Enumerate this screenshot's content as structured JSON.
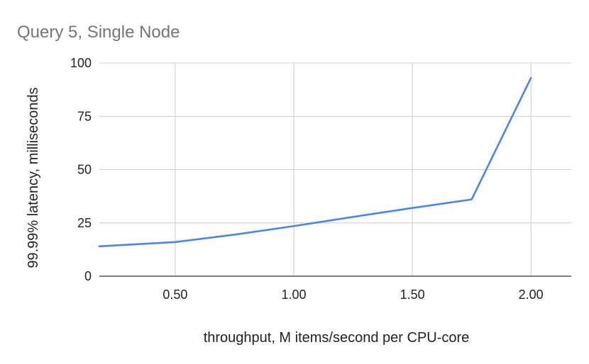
{
  "chart_data": {
    "type": "line",
    "title": "Query 5, Single Node",
    "xlabel": "throughput, M items/second per CPU-core",
    "ylabel": "99.99% latency, milliseconds",
    "xlim": [
      0.18,
      2.17
    ],
    "ylim": [
      0,
      100
    ],
    "x_ticks": [
      0.5,
      1.0,
      1.5,
      2.0
    ],
    "x_tick_labels": [
      "0.50",
      "1.00",
      "1.50",
      "2.00"
    ],
    "y_ticks": [
      0,
      25,
      50,
      75,
      100
    ],
    "y_tick_labels": [
      "0",
      "25",
      "50",
      "75",
      "100"
    ],
    "grid": true,
    "legend": "none",
    "series": [
      {
        "color": "#4a86e8",
        "x": [
          0.18,
          0.5,
          0.75,
          1.0,
          1.25,
          1.5,
          1.75,
          2.0
        ],
        "y": [
          14,
          16,
          19.5,
          23.5,
          27.8,
          32,
          36,
          93
        ]
      }
    ]
  }
}
